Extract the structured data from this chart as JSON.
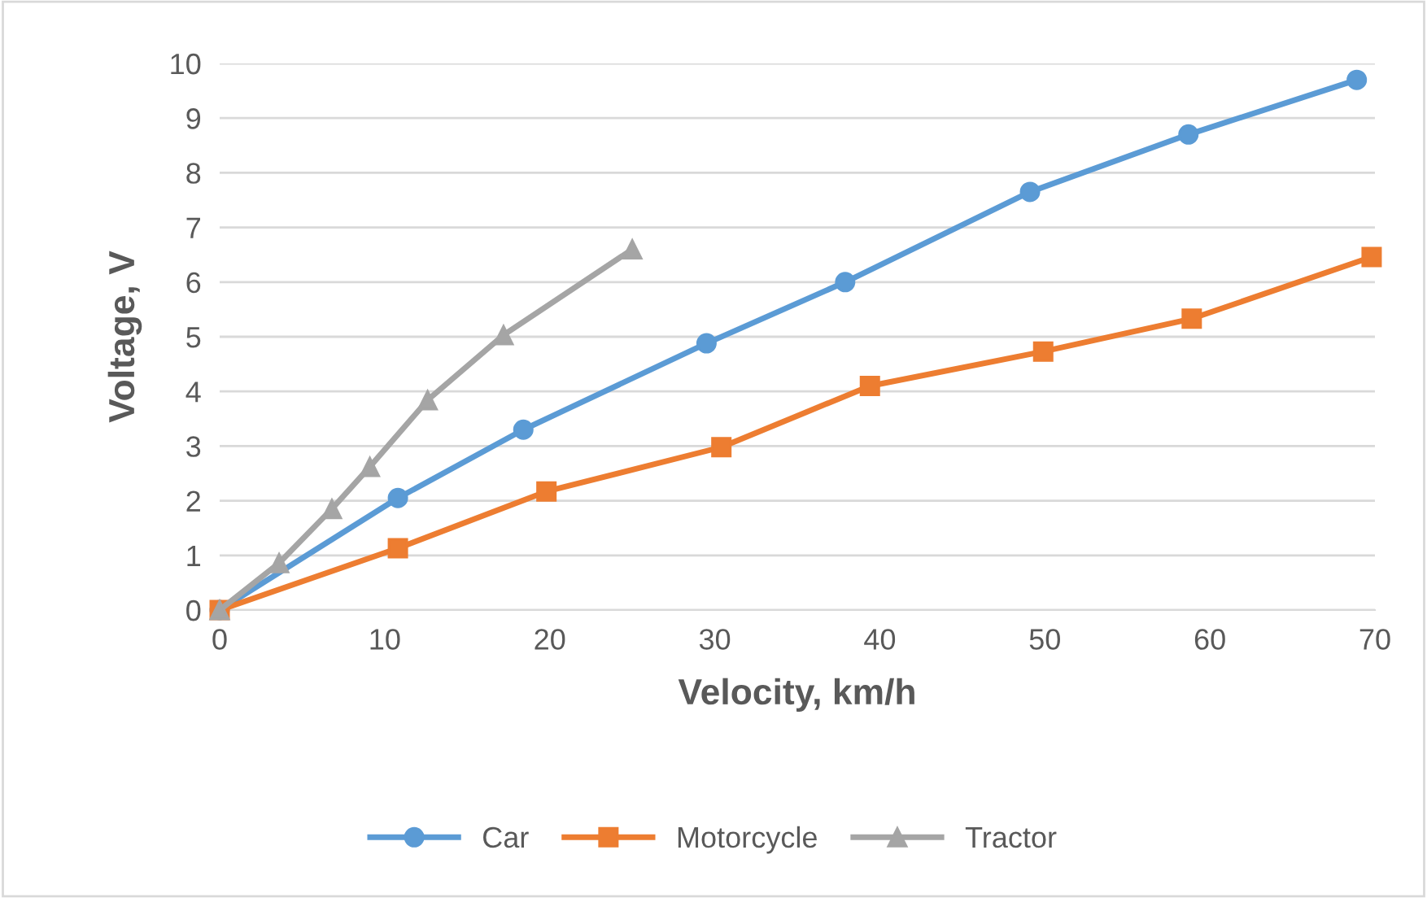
{
  "chart_data": {
    "type": "line",
    "xlabel": "Velocity, km/h",
    "ylabel": "Voltage, V",
    "xlim": [
      0,
      70
    ],
    "xticks": [
      0,
      10,
      20,
      30,
      40,
      50,
      60,
      70
    ],
    "ylim": [
      0,
      10
    ],
    "yticks": [
      0,
      1,
      2,
      3,
      4,
      5,
      6,
      7,
      8,
      9,
      10
    ],
    "grid": "y",
    "legend": "bottom",
    "series": [
      {
        "name": "Car",
        "color": "#5b9bd5",
        "marker": "circle",
        "x": [
          0,
          10.8,
          18.4,
          29.5,
          37.9,
          49.1,
          58.7,
          68.9
        ],
        "values": [
          0,
          2.05,
          3.3,
          4.88,
          6.0,
          7.65,
          8.7,
          9.7
        ]
      },
      {
        "name": "Motorcycle",
        "color": "#ed7d31",
        "marker": "square",
        "x": [
          0,
          10.8,
          19.8,
          30.4,
          39.4,
          49.9,
          58.9,
          69.8
        ],
        "values": [
          0,
          1.13,
          2.17,
          2.98,
          4.1,
          4.73,
          5.33,
          6.46
        ]
      },
      {
        "name": "Tractor",
        "color": "#a5a5a5",
        "marker": "triangle",
        "x": [
          0,
          3.6,
          6.8,
          9.1,
          12.6,
          17.2,
          25.0
        ],
        "values": [
          0,
          0.86,
          1.85,
          2.62,
          3.84,
          5.03,
          6.6
        ]
      }
    ]
  }
}
